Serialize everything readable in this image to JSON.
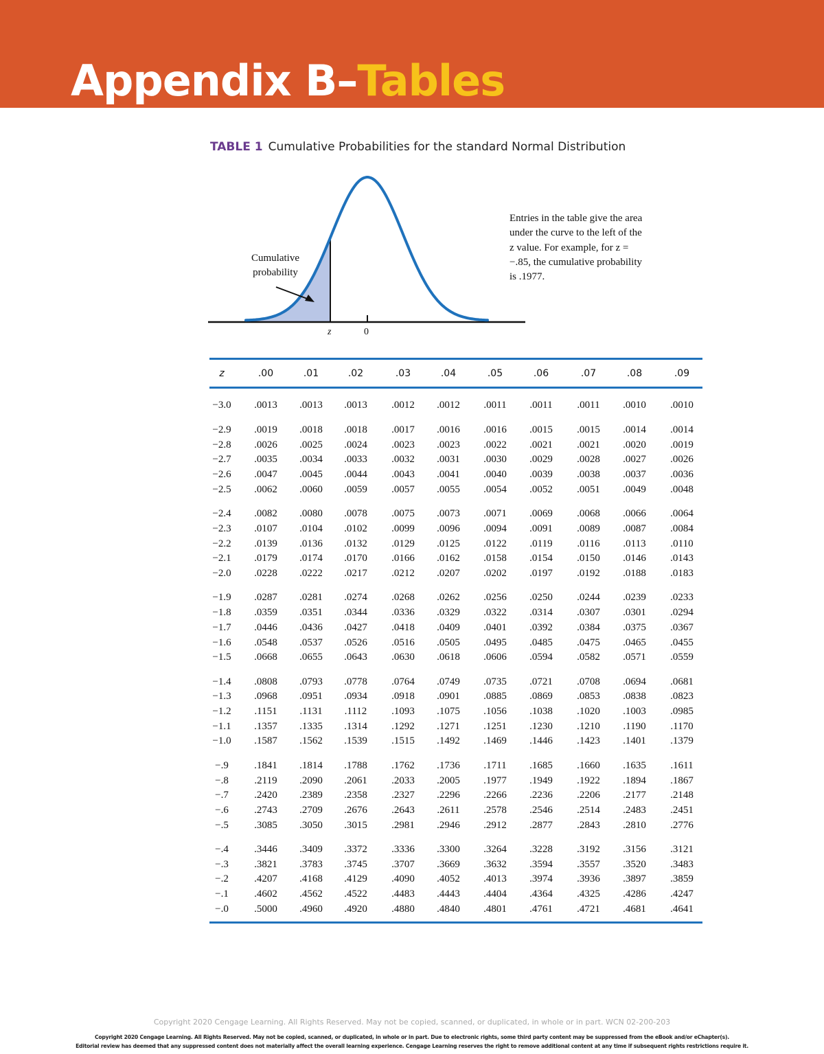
{
  "header": {
    "title_part1": "Appendix B–",
    "title_part2": "Tables",
    "banner_color": "#D9572B",
    "highlight_color": "#F7C21A"
  },
  "caption": {
    "label": "TABLE 1",
    "text": "Cumulative Probabilities for the standard Normal Distribution"
  },
  "figure": {
    "shaded_label": "Cumulative probability",
    "z_label": "z",
    "zero_label": "0",
    "note": "Entries in the table give the area under the curve to the left of the z value. For example, for z = −.85, the cumulative probability is .1977.",
    "curve_color": "#1F72BC",
    "shade_color": "#B9C6E6"
  },
  "table": {
    "columns": [
      "z",
      ".00",
      ".01",
      ".02",
      ".03",
      ".04",
      ".05",
      ".06",
      ".07",
      ".08",
      ".09"
    ],
    "rows": [
      [
        "−3.0",
        ".0013",
        ".0013",
        ".0013",
        ".0012",
        ".0012",
        ".0011",
        ".0011",
        ".0011",
        ".0010",
        ".0010"
      ],
      [
        "−2.9",
        ".0019",
        ".0018",
        ".0018",
        ".0017",
        ".0016",
        ".0016",
        ".0015",
        ".0015",
        ".0014",
        ".0014"
      ],
      [
        "−2.8",
        ".0026",
        ".0025",
        ".0024",
        ".0023",
        ".0023",
        ".0022",
        ".0021",
        ".0021",
        ".0020",
        ".0019"
      ],
      [
        "−2.7",
        ".0035",
        ".0034",
        ".0033",
        ".0032",
        ".0031",
        ".0030",
        ".0029",
        ".0028",
        ".0027",
        ".0026"
      ],
      [
        "−2.6",
        ".0047",
        ".0045",
        ".0044",
        ".0043",
        ".0041",
        ".0040",
        ".0039",
        ".0038",
        ".0037",
        ".0036"
      ],
      [
        "−2.5",
        ".0062",
        ".0060",
        ".0059",
        ".0057",
        ".0055",
        ".0054",
        ".0052",
        ".0051",
        ".0049",
        ".0048"
      ],
      [
        "−2.4",
        ".0082",
        ".0080",
        ".0078",
        ".0075",
        ".0073",
        ".0071",
        ".0069",
        ".0068",
        ".0066",
        ".0064"
      ],
      [
        "−2.3",
        ".0107",
        ".0104",
        ".0102",
        ".0099",
        ".0096",
        ".0094",
        ".0091",
        ".0089",
        ".0087",
        ".0084"
      ],
      [
        "−2.2",
        ".0139",
        ".0136",
        ".0132",
        ".0129",
        ".0125",
        ".0122",
        ".0119",
        ".0116",
        ".0113",
        ".0110"
      ],
      [
        "−2.1",
        ".0179",
        ".0174",
        ".0170",
        ".0166",
        ".0162",
        ".0158",
        ".0154",
        ".0150",
        ".0146",
        ".0143"
      ],
      [
        "−2.0",
        ".0228",
        ".0222",
        ".0217",
        ".0212",
        ".0207",
        ".0202",
        ".0197",
        ".0192",
        ".0188",
        ".0183"
      ],
      [
        "−1.9",
        ".0287",
        ".0281",
        ".0274",
        ".0268",
        ".0262",
        ".0256",
        ".0250",
        ".0244",
        ".0239",
        ".0233"
      ],
      [
        "−1.8",
        ".0359",
        ".0351",
        ".0344",
        ".0336",
        ".0329",
        ".0322",
        ".0314",
        ".0307",
        ".0301",
        ".0294"
      ],
      [
        "−1.7",
        ".0446",
        ".0436",
        ".0427",
        ".0418",
        ".0409",
        ".0401",
        ".0392",
        ".0384",
        ".0375",
        ".0367"
      ],
      [
        "−1.6",
        ".0548",
        ".0537",
        ".0526",
        ".0516",
        ".0505",
        ".0495",
        ".0485",
        ".0475",
        ".0465",
        ".0455"
      ],
      [
        "−1.5",
        ".0668",
        ".0655",
        ".0643",
        ".0630",
        ".0618",
        ".0606",
        ".0594",
        ".0582",
        ".0571",
        ".0559"
      ],
      [
        "−1.4",
        ".0808",
        ".0793",
        ".0778",
        ".0764",
        ".0749",
        ".0735",
        ".0721",
        ".0708",
        ".0694",
        ".0681"
      ],
      [
        "−1.3",
        ".0968",
        ".0951",
        ".0934",
        ".0918",
        ".0901",
        ".0885",
        ".0869",
        ".0853",
        ".0838",
        ".0823"
      ],
      [
        "−1.2",
        ".1151",
        ".1131",
        ".1112",
        ".1093",
        ".1075",
        ".1056",
        ".1038",
        ".1020",
        ".1003",
        ".0985"
      ],
      [
        "−1.1",
        ".1357",
        ".1335",
        ".1314",
        ".1292",
        ".1271",
        ".1251",
        ".1230",
        ".1210",
        ".1190",
        ".1170"
      ],
      [
        "−1.0",
        ".1587",
        ".1562",
        ".1539",
        ".1515",
        ".1492",
        ".1469",
        ".1446",
        ".1423",
        ".1401",
        ".1379"
      ],
      [
        "−.9",
        ".1841",
        ".1814",
        ".1788",
        ".1762",
        ".1736",
        ".1711",
        ".1685",
        ".1660",
        ".1635",
        ".1611"
      ],
      [
        "−.8",
        ".2119",
        ".2090",
        ".2061",
        ".2033",
        ".2005",
        ".1977",
        ".1949",
        ".1922",
        ".1894",
        ".1867"
      ],
      [
        "−.7",
        ".2420",
        ".2389",
        ".2358",
        ".2327",
        ".2296",
        ".2266",
        ".2236",
        ".2206",
        ".2177",
        ".2148"
      ],
      [
        "−.6",
        ".2743",
        ".2709",
        ".2676",
        ".2643",
        ".2611",
        ".2578",
        ".2546",
        ".2514",
        ".2483",
        ".2451"
      ],
      [
        "−.5",
        ".3085",
        ".3050",
        ".3015",
        ".2981",
        ".2946",
        ".2912",
        ".2877",
        ".2843",
        ".2810",
        ".2776"
      ],
      [
        "−.4",
        ".3446",
        ".3409",
        ".3372",
        ".3336",
        ".3300",
        ".3264",
        ".3228",
        ".3192",
        ".3156",
        ".3121"
      ],
      [
        "−.3",
        ".3821",
        ".3783",
        ".3745",
        ".3707",
        ".3669",
        ".3632",
        ".3594",
        ".3557",
        ".3520",
        ".3483"
      ],
      [
        "−.2",
        ".4207",
        ".4168",
        ".4129",
        ".4090",
        ".4052",
        ".4013",
        ".3974",
        ".3936",
        ".3897",
        ".3859"
      ],
      [
        "−.1",
        ".4602",
        ".4562",
        ".4522",
        ".4483",
        ".4443",
        ".4404",
        ".4364",
        ".4325",
        ".4286",
        ".4247"
      ],
      [
        "−.0",
        ".5000",
        ".4960",
        ".4920",
        ".4880",
        ".4840",
        ".4801",
        ".4761",
        ".4721",
        ".4681",
        ".4641"
      ]
    ]
  },
  "footer": {
    "line1": "Copyright 2020 Cengage Learning. All Rights Reserved. May not be copied, scanned, or duplicated, in whole or in part. WCN 02-200-203",
    "line2": "Copyright 2020 Cengage Learning. All Rights Reserved. May not be copied, scanned, or duplicated, in whole or in part. Due to electronic rights, some third party content may be suppressed from the eBook and/or eChapter(s).",
    "line3": "Editorial review has deemed that any suppressed content does not materially affect the overall learning experience. Cengage Learning reserves the right to remove additional content at any time if subsequent rights restrictions require it."
  }
}
